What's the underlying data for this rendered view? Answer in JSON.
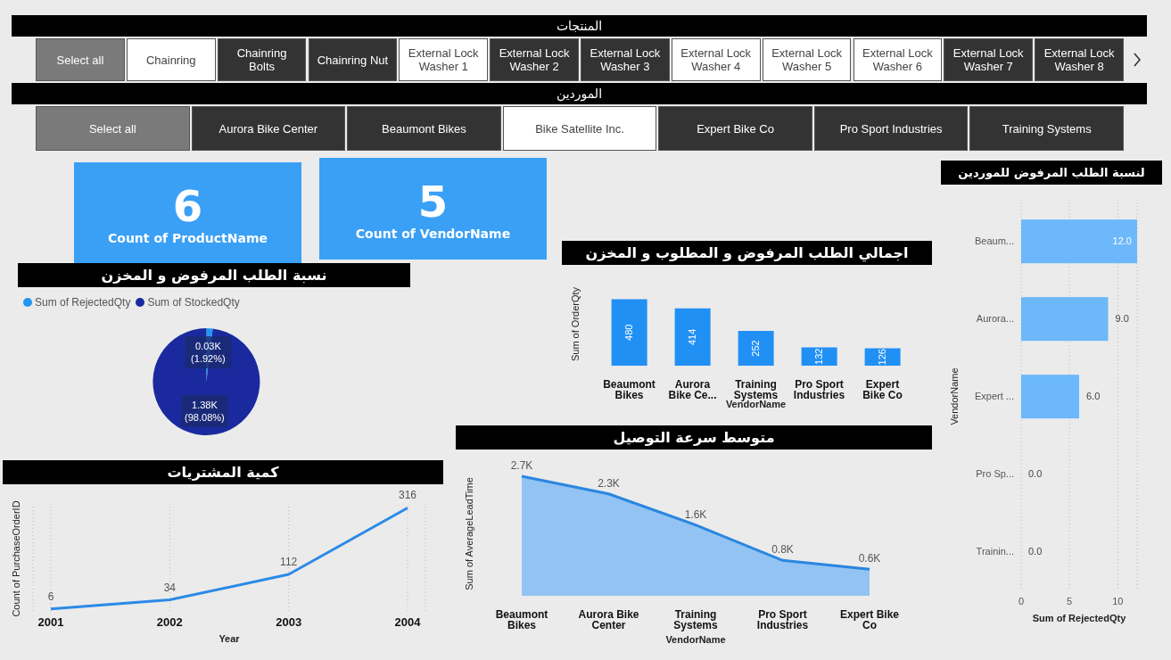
{
  "chart_data": [
    {
      "type": "other",
      "title": "المنتجات",
      "annotations": [
        "Select all",
        "Chainring",
        "Chainring Bolts",
        "Chainring Nut",
        "External Lock Washer 1",
        "External Lock Washer 2",
        "External Lock Washer 3",
        "External Lock Washer 4",
        "External Lock Washer 5",
        "External Lock Washer 6",
        "External Lock Washer 7",
        "External Lock Washer 8"
      ]
    },
    {
      "type": "other",
      "title": "الموردين",
      "annotations": [
        "Select all",
        "Aurora Bike Center",
        "Beaumont Bikes",
        "Bike Satellite Inc.",
        "Expert Bike Co",
        "Pro Sport Industries",
        "Training Systems"
      ]
    },
    {
      "type": "other",
      "annotations": [
        "6",
        "Count of ProductName"
      ]
    },
    {
      "type": "other",
      "annotations": [
        "5",
        "Count of VendorName"
      ]
    },
    {
      "type": "pie",
      "title": "نسبة الطلب المرفوض و المخزن",
      "categories": [
        "Sum of RejectedQty",
        "Sum of StockedQty"
      ],
      "values": [
        1.92,
        98.08
      ],
      "value_labels": [
        "0.03K (1.92%)",
        "1.38K (98.08%)"
      ],
      "colors": [
        "#2196f3",
        "#1a2a9e"
      ],
      "legend": "top left"
    },
    {
      "type": "bar",
      "title": "اجمالي الطلب المرفوض و المطلوب و المخزن",
      "xlabel": "VendorName",
      "ylabel": "Sum of OrderQty",
      "categories": [
        "Beaumont Bikes",
        "Aurora Bike Ce...",
        "Training Systems",
        "Pro Sport Industries",
        "Expert Bike Co"
      ],
      "values": [
        480,
        414,
        252,
        132,
        126
      ],
      "color": "#2190f5",
      "data_labels": true
    },
    {
      "type": "bar",
      "orientation": "horizontal",
      "title": "لنسبة الطلب المرفوض للموردين",
      "xlabel": "Sum of RejectedQty",
      "ylabel": "VendorName",
      "categories": [
        "Beaum...",
        "Aurora...",
        "Expert ...",
        "Pro Sp...",
        "Trainin..."
      ],
      "values": [
        12,
        9,
        6,
        0,
        0
      ],
      "value_labels": [
        "12.0",
        "9.0",
        "6.0",
        "0.0",
        "0.0"
      ],
      "color": "#6cb8fa",
      "xlim": [
        0,
        12
      ],
      "xticks": [
        0,
        5,
        10
      ],
      "grid": "x"
    },
    {
      "type": "line",
      "title": "كمية المشتريات",
      "xlabel": "Year",
      "ylabel": "Count of PurchaseOrderID",
      "categories": [
        "2001",
        "2002",
        "2003",
        "2004"
      ],
      "values": [
        6,
        34,
        112,
        316
      ],
      "color": "#2a8ae6",
      "data_labels": true,
      "grid": "x"
    },
    {
      "type": "area",
      "title": "متوسط سرعة التوصيل",
      "xlabel": "VendorName",
      "ylabel": "Sum of AverageLeadTime",
      "categories": [
        "Beaumont Bikes",
        "Aurora Bike Center",
        "Training Systems",
        "Pro Sport Industries",
        "Expert Bike Co"
      ],
      "values": [
        2700,
        2300,
        1600,
        800,
        600
      ],
      "value_labels": [
        "2.7K",
        "2.3K",
        "1.6K",
        "0.8K",
        "0.6K"
      ],
      "color": "#2a86e0"
    }
  ]
}
